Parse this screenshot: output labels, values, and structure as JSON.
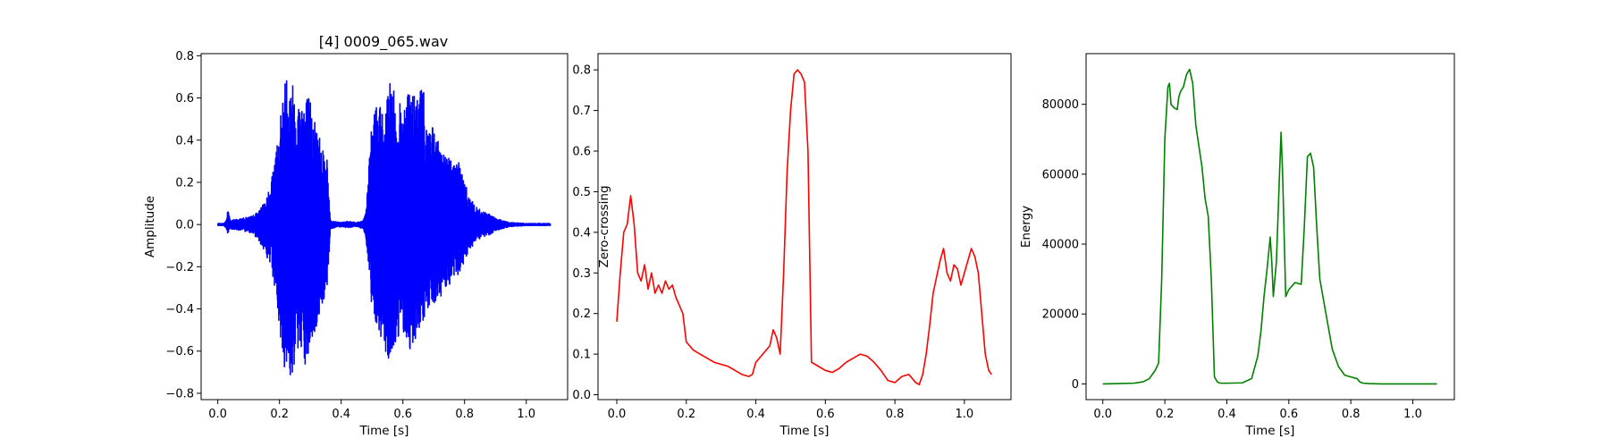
{
  "chart_data": [
    {
      "type": "line",
      "title": "[4] 0009_065.wav",
      "xlabel": "Time [s]",
      "ylabel": "Amplitude",
      "xlim": [
        -0.054,
        1.134
      ],
      "ylim": [
        -0.83,
        0.81
      ],
      "xticks": [
        0.0,
        0.2,
        0.4,
        0.6,
        0.8,
        1.0
      ],
      "xtick_labels": [
        "0.0",
        "0.2",
        "0.4",
        "0.6",
        "0.8",
        "1.0"
      ],
      "yticks": [
        -0.8,
        -0.6,
        -0.4,
        -0.2,
        0.0,
        0.2,
        0.4,
        0.6,
        0.8
      ],
      "ytick_labels": [
        "−0.8",
        "−0.6",
        "−0.4",
        "−0.2",
        "0.0",
        "0.2",
        "0.4",
        "0.6",
        "0.8"
      ],
      "color": "#0000ff",
      "grid": false,
      "series": [
        {
          "style": "waveform-envelope",
          "x": [
            0.0,
            0.02,
            0.03,
            0.032,
            0.04,
            0.08,
            0.11,
            0.13,
            0.15,
            0.17,
            0.185,
            0.2,
            0.22,
            0.24,
            0.26,
            0.28,
            0.3,
            0.32,
            0.34,
            0.355,
            0.365,
            0.38,
            0.4,
            0.42,
            0.45,
            0.47,
            0.48,
            0.5,
            0.52,
            0.54,
            0.56,
            0.58,
            0.6,
            0.62,
            0.64,
            0.66,
            0.68,
            0.7,
            0.72,
            0.74,
            0.76,
            0.78,
            0.8,
            0.82,
            0.84,
            0.86,
            0.88,
            0.9,
            0.92,
            0.95,
            1.0,
            1.078
          ],
          "upper": [
            0.005,
            0.005,
            0.03,
            0.09,
            0.02,
            0.03,
            0.04,
            0.06,
            0.1,
            0.18,
            0.3,
            0.5,
            0.72,
            0.7,
            0.6,
            0.65,
            0.6,
            0.48,
            0.4,
            0.3,
            0.02,
            0.015,
            0.01,
            0.015,
            0.01,
            0.02,
            0.06,
            0.5,
            0.62,
            0.5,
            0.72,
            0.56,
            0.6,
            0.65,
            0.6,
            0.7,
            0.5,
            0.45,
            0.37,
            0.35,
            0.3,
            0.33,
            0.2,
            0.12,
            0.08,
            0.06,
            0.05,
            0.03,
            0.02,
            0.01,
            0.005,
            0.005
          ],
          "lower": [
            -0.005,
            -0.005,
            -0.03,
            -0.05,
            -0.02,
            -0.03,
            -0.04,
            -0.07,
            -0.12,
            -0.2,
            -0.3,
            -0.5,
            -0.72,
            -0.75,
            -0.6,
            -0.72,
            -0.6,
            -0.5,
            -0.38,
            -0.3,
            -0.02,
            -0.015,
            -0.01,
            -0.015,
            -0.01,
            -0.02,
            -0.06,
            -0.4,
            -0.5,
            -0.6,
            -0.7,
            -0.55,
            -0.5,
            -0.6,
            -0.55,
            -0.5,
            -0.42,
            -0.4,
            -0.35,
            -0.3,
            -0.28,
            -0.25,
            -0.18,
            -0.12,
            -0.08,
            -0.06,
            -0.05,
            -0.03,
            -0.02,
            -0.01,
            -0.005,
            -0.005
          ]
        }
      ]
    },
    {
      "type": "line",
      "title": "",
      "xlabel": "Time [s]",
      "ylabel": "Zero-crossing",
      "xlim": [
        -0.054,
        1.134
      ],
      "ylim": [
        -0.012,
        0.84
      ],
      "xticks": [
        0.0,
        0.2,
        0.4,
        0.6,
        0.8,
        1.0
      ],
      "xtick_labels": [
        "0.0",
        "0.2",
        "0.4",
        "0.6",
        "0.8",
        "1.0"
      ],
      "yticks": [
        0.0,
        0.1,
        0.2,
        0.3,
        0.4,
        0.5,
        0.6,
        0.7,
        0.8
      ],
      "ytick_labels": [
        "0.0",
        "0.1",
        "0.2",
        "0.3",
        "0.4",
        "0.5",
        "0.6",
        "0.7",
        "0.8"
      ],
      "color": "#ff0000",
      "grid": false,
      "series": [
        {
          "x": [
            0.0,
            0.01,
            0.02,
            0.03,
            0.04,
            0.05,
            0.06,
            0.07,
            0.08,
            0.09,
            0.1,
            0.11,
            0.12,
            0.13,
            0.14,
            0.15,
            0.16,
            0.17,
            0.18,
            0.19,
            0.2,
            0.21,
            0.22,
            0.24,
            0.26,
            0.28,
            0.3,
            0.32,
            0.34,
            0.36,
            0.38,
            0.39,
            0.4,
            0.42,
            0.44,
            0.45,
            0.46,
            0.47,
            0.48,
            0.49,
            0.5,
            0.51,
            0.52,
            0.53,
            0.54,
            0.55,
            0.56,
            0.58,
            0.6,
            0.62,
            0.64,
            0.66,
            0.68,
            0.7,
            0.72,
            0.74,
            0.76,
            0.78,
            0.8,
            0.82,
            0.84,
            0.86,
            0.87,
            0.88,
            0.89,
            0.9,
            0.91,
            0.92,
            0.93,
            0.94,
            0.95,
            0.96,
            0.97,
            0.98,
            0.99,
            1.0,
            1.01,
            1.02,
            1.03,
            1.04,
            1.05,
            1.06,
            1.07,
            1.078
          ],
          "y": [
            0.18,
            0.3,
            0.4,
            0.42,
            0.49,
            0.42,
            0.3,
            0.28,
            0.32,
            0.26,
            0.3,
            0.25,
            0.27,
            0.25,
            0.28,
            0.26,
            0.27,
            0.24,
            0.22,
            0.2,
            0.13,
            0.12,
            0.11,
            0.1,
            0.09,
            0.08,
            0.075,
            0.07,
            0.06,
            0.05,
            0.045,
            0.05,
            0.08,
            0.1,
            0.12,
            0.16,
            0.14,
            0.1,
            0.3,
            0.55,
            0.7,
            0.79,
            0.8,
            0.79,
            0.77,
            0.6,
            0.08,
            0.07,
            0.06,
            0.055,
            0.065,
            0.08,
            0.09,
            0.1,
            0.095,
            0.08,
            0.06,
            0.035,
            0.03,
            0.045,
            0.05,
            0.03,
            0.025,
            0.05,
            0.1,
            0.17,
            0.25,
            0.29,
            0.33,
            0.36,
            0.3,
            0.28,
            0.32,
            0.31,
            0.27,
            0.3,
            0.33,
            0.36,
            0.34,
            0.3,
            0.2,
            0.1,
            0.06,
            0.05
          ]
        }
      ]
    },
    {
      "type": "line",
      "title": "",
      "xlabel": "Time [s]",
      "ylabel": "Energy",
      "xlim": [
        -0.054,
        1.134
      ],
      "ylim": [
        -4500,
        94500
      ],
      "xticks": [
        0.0,
        0.2,
        0.4,
        0.6,
        0.8,
        1.0
      ],
      "xtick_labels": [
        "0.0",
        "0.2",
        "0.4",
        "0.6",
        "0.8",
        "1.0"
      ],
      "yticks": [
        0,
        20000,
        40000,
        60000,
        80000
      ],
      "ytick_labels": [
        "0",
        "20000",
        "40000",
        "60000",
        "80000"
      ],
      "color": "#008000",
      "grid": false,
      "series": [
        {
          "x": [
            0.0,
            0.05,
            0.1,
            0.13,
            0.15,
            0.17,
            0.18,
            0.19,
            0.2,
            0.21,
            0.215,
            0.22,
            0.23,
            0.24,
            0.245,
            0.25,
            0.26,
            0.27,
            0.28,
            0.29,
            0.3,
            0.31,
            0.32,
            0.33,
            0.34,
            0.35,
            0.36,
            0.37,
            0.38,
            0.4,
            0.45,
            0.48,
            0.5,
            0.51,
            0.52,
            0.53,
            0.54,
            0.545,
            0.55,
            0.56,
            0.57,
            0.575,
            0.58,
            0.59,
            0.6,
            0.62,
            0.64,
            0.65,
            0.66,
            0.67,
            0.68,
            0.69,
            0.7,
            0.72,
            0.74,
            0.76,
            0.78,
            0.8,
            0.82,
            0.83,
            0.84,
            0.86,
            0.9,
            1.0,
            1.078
          ],
          "y": [
            0,
            100,
            200,
            600,
            1500,
            4000,
            6000,
            30000,
            70000,
            85000,
            86000,
            80000,
            79000,
            78500,
            82000,
            83500,
            85000,
            88500,
            90000,
            86000,
            74000,
            68000,
            62000,
            53000,
            48000,
            30000,
            2000,
            500,
            200,
            200,
            300,
            1500,
            8000,
            15000,
            25000,
            33000,
            42000,
            35000,
            25000,
            35000,
            60000,
            72000,
            60000,
            25000,
            27000,
            29000,
            28500,
            45000,
            65000,
            66000,
            62000,
            45000,
            30000,
            20000,
            10000,
            5000,
            2500,
            2000,
            1500,
            500,
            200,
            100,
            0,
            0,
            0
          ]
        }
      ]
    }
  ]
}
